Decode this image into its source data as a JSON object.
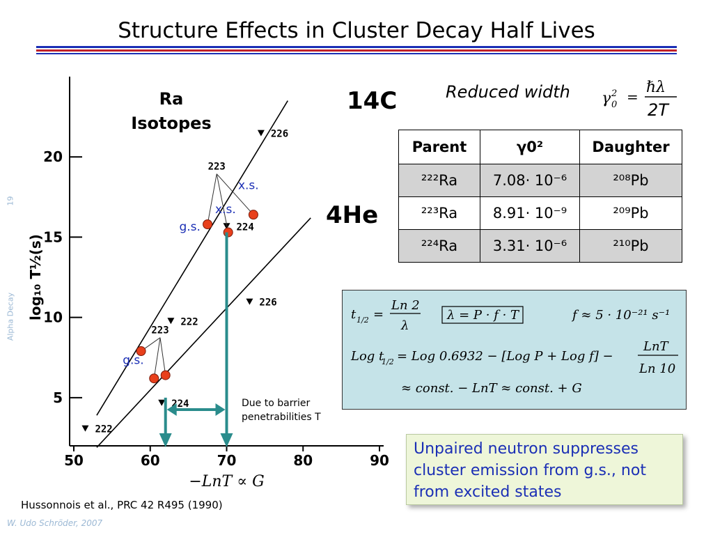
{
  "slide": {
    "title": "Structure Effects in Cluster Decay Half Lives",
    "page_number": "19",
    "side_label": "Alpha Decay",
    "author": "W. Udo Schröder, 2007",
    "reference": "Hussonnois et al., PRC 42 R495 (1990)",
    "rule_colors": [
      "#1b2fb5",
      "#c0202a"
    ]
  },
  "chart_data": {
    "type": "scatter",
    "xlabel": "−LnT ∝ G",
    "ylabel": "log₁₀ T½(s)",
    "xlim": [
      50,
      90
    ],
    "ylim": [
      2,
      25
    ],
    "xticks": [
      "50",
      "60",
      "70",
      "80",
      "90"
    ],
    "yticks": [
      "5",
      "10",
      "15",
      "20"
    ],
    "series": [
      {
        "name": "¹⁴C",
        "points": [
          {
            "x": 51.5,
            "y": 3.1,
            "label": "222"
          },
          {
            "x": 62.7,
            "y": 9.8,
            "label": "222"
          },
          {
            "x": 70.0,
            "y": 15.7,
            "label": "224"
          },
          {
            "x": 74.5,
            "y": 21.5,
            "label": "226"
          }
        ]
      },
      {
        "name": "⁴He",
        "points": [
          {
            "x": 61.5,
            "y": 4.7,
            "label": "224"
          },
          {
            "x": 73.0,
            "y": 11.0,
            "label": "226"
          }
        ]
      }
    ],
    "isotope_223": {
      "upper": {
        "label": "223",
        "gs": {
          "x": 67.5,
          "y": 15.8
        },
        "xs": [
          {
            "x": 70.2,
            "y": 15.3
          },
          {
            "x": 73.5,
            "y": 16.4
          }
        ],
        "gs_label": "g.s.",
        "xs_label_a": "x.s.",
        "xs_label_b": "x.s."
      },
      "lower": {
        "label": "223",
        "gs": {
          "x": 58.8,
          "y": 7.9
        },
        "xs": [
          {
            "x": 60.5,
            "y": 6.2
          },
          {
            "x": 62.0,
            "y": 6.4
          }
        ],
        "gs_label": "g.s."
      }
    },
    "arrow_x": [
      62,
      70
    ],
    "annotation": "Due to barrier penetrabilities T"
  },
  "labels": {
    "ra_isotopes": "Ra\nIsotopes",
    "c14": "14C",
    "he4": "4He"
  },
  "reduced_width": {
    "label": "Reduced width",
    "formula_lhs": "γ0²",
    "formula_num": "ℏλ",
    "formula_den": "2T"
  },
  "table": {
    "headers": [
      "Parent",
      "γ0²",
      "Daughter"
    ],
    "rows": [
      [
        "²²²Ra",
        "7.08· 10⁻⁶",
        "²⁰⁸Pb"
      ],
      [
        "²²³Ra",
        "8.91· 10⁻⁹",
        "²⁰⁹Pb"
      ],
      [
        "²²⁴Ra",
        "3.31· 10⁻⁶",
        "²¹⁰Pb"
      ]
    ]
  },
  "formulas": {
    "line1a": "t1/2 = Ln2 / λ",
    "line1b": "λ = P · f · T",
    "line1c": "f ≈ 5 · 10⁻²¹ s⁻¹",
    "line2": "Log t1/2 = Log 0.6932 − [Log P + Log f] − LnT / Ln10",
    "line3": "≈ const. − LnT ≈ const. + G"
  },
  "note": "Unpaired neutron suppresses cluster emission from g.s., not from excited states"
}
